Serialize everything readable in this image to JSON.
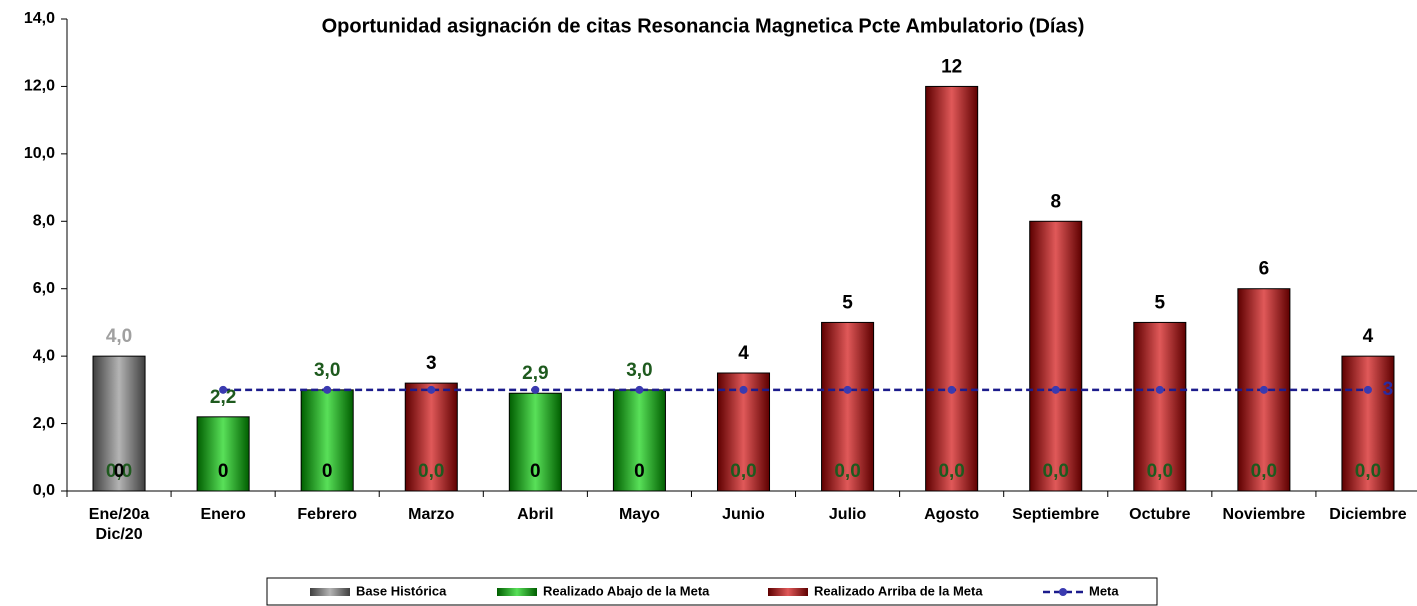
{
  "chart_data": {
    "type": "bar",
    "title": "Oportunidad asignación de citas Resonancia Magnetica Pcte Ambulatorio (Días)",
    "categories": [
      "Ene/20a\nDic/20",
      "Enero",
      "Febrero",
      "Marzo",
      "Abril",
      "Mayo",
      "Junio",
      "Julio",
      "Agosto",
      "Septiembre",
      "Octubre",
      "Noviembre",
      "Diciembre"
    ],
    "series": [
      {
        "name": "Base Histórica",
        "color": "#8c8c8c",
        "label_color": "#a0a0a0",
        "values": [
          4.0,
          null,
          null,
          null,
          null,
          null,
          null,
          null,
          null,
          null,
          null,
          null,
          null
        ],
        "value_labels": [
          "4,0",
          null,
          null,
          null,
          null,
          null,
          null,
          null,
          null,
          null,
          null,
          null,
          null
        ]
      },
      {
        "name": "Realizado Abajo de la Meta",
        "color": "#00d000",
        "label_color": "#1e5a1e",
        "values": [
          0,
          2.2,
          3.0,
          0,
          2.9,
          3.0,
          0,
          0,
          0,
          0,
          0,
          0,
          0
        ],
        "value_labels": [
          "0,0",
          "2,2",
          "3,0",
          "0,0",
          "2,9",
          "3,0",
          "0,0",
          "0,0",
          "0,0",
          "0,0",
          "0,0",
          "0,0",
          "0,0"
        ]
      },
      {
        "name": "Realizado Arriba de la Meta",
        "color": "#d00000",
        "label_color": "#000000",
        "values": [
          0,
          0,
          0,
          3.2,
          0,
          0,
          3.5,
          5,
          12,
          8,
          5,
          6,
          4
        ],
        "value_labels": [
          "0",
          "0",
          "0",
          "3",
          "0",
          "0",
          "4",
          "5",
          "12",
          "8",
          "5",
          "6",
          "4"
        ]
      },
      {
        "name": "Meta",
        "type": "line",
        "color": "#1c1c8c",
        "label_color": "#2a2aa0",
        "values": [
          null,
          3,
          3,
          3,
          3,
          3,
          3,
          3,
          3,
          3,
          3,
          3,
          3
        ],
        "value_labels": [
          null,
          null,
          null,
          null,
          null,
          null,
          null,
          null,
          null,
          null,
          null,
          null,
          "3"
        ]
      }
    ],
    "ylim": [
      0,
      14
    ],
    "yticks": [
      {
        "value": 0,
        "label": "0,0"
      },
      {
        "value": 2,
        "label": "2,0"
      },
      {
        "value": 4,
        "label": "4,0"
      },
      {
        "value": 6,
        "label": "6,0"
      },
      {
        "value": 8,
        "label": "8,0"
      },
      {
        "value": 10,
        "label": "10,0"
      },
      {
        "value": 12,
        "label": "12,0"
      },
      {
        "value": 14,
        "label": "14,0"
      }
    ],
    "grid": false,
    "legend": "bottom"
  }
}
